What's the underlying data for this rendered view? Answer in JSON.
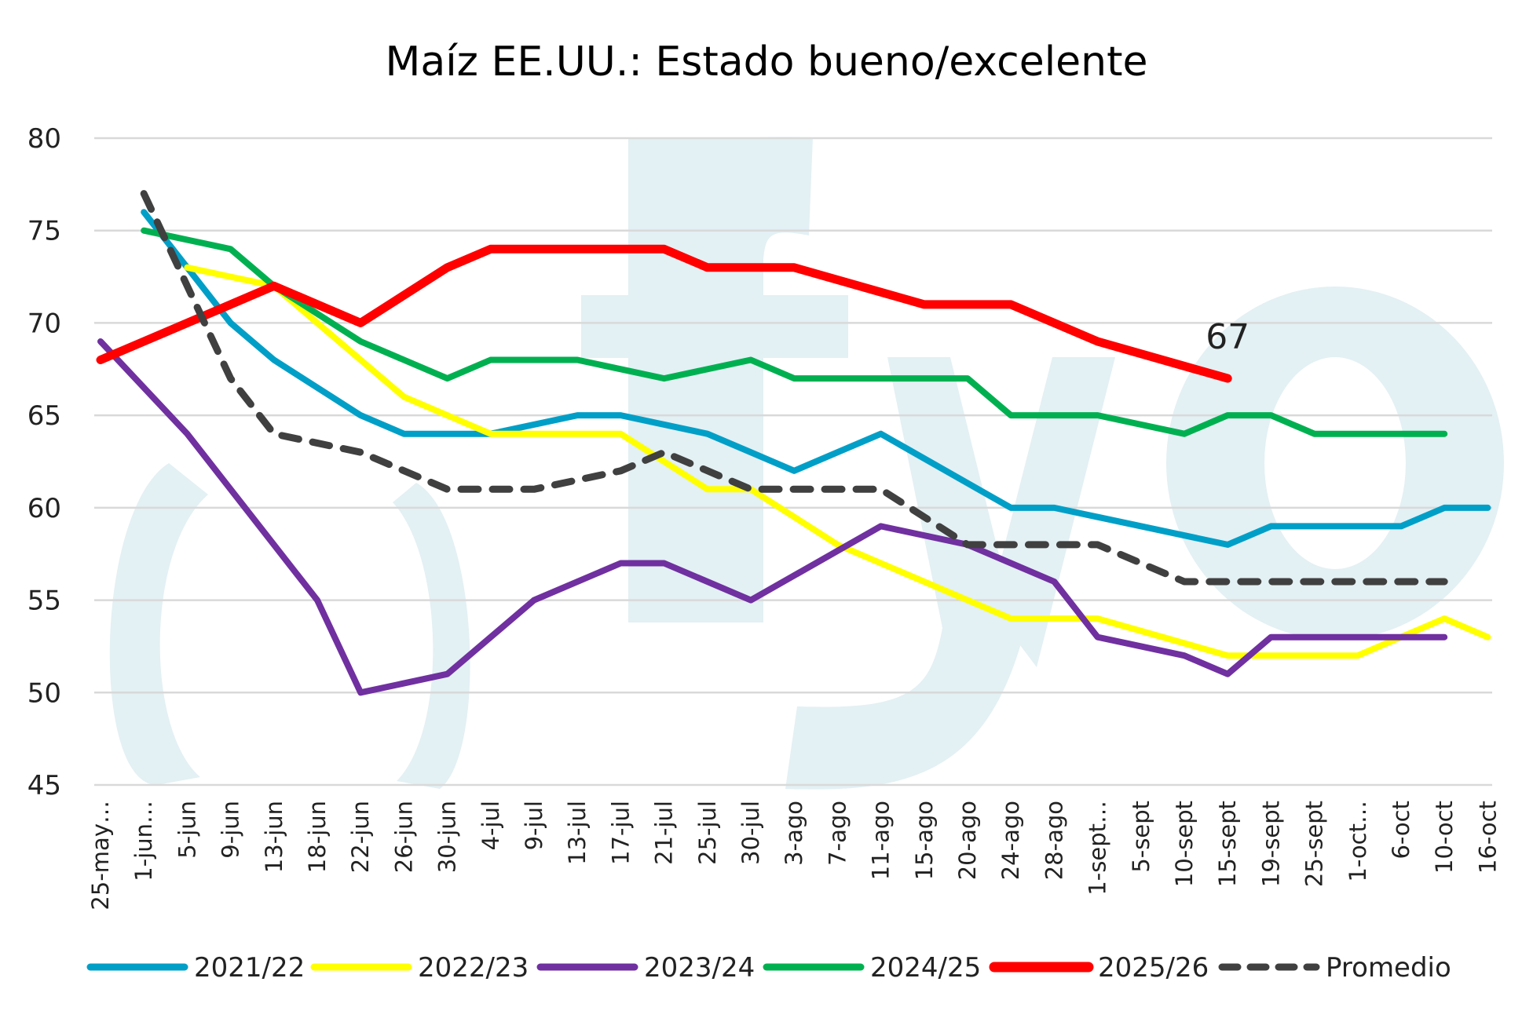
{
  "chart_data": {
    "type": "line",
    "title": "Maíz EE.UU.: Estado bueno/excelente",
    "xlabel": "",
    "ylabel": "",
    "ylim": [
      45,
      80
    ],
    "yticks": [
      45,
      50,
      55,
      60,
      65,
      70,
      75,
      80
    ],
    "grid": true,
    "legend_position": "bottom",
    "watermark": "fyo",
    "categories": [
      "25-may…",
      "1-jun…",
      "5-jun",
      "9-jun",
      "13-jun",
      "18-jun",
      "22-jun",
      "26-jun",
      "30-jun",
      "4-jul",
      "9-jul",
      "13-jul",
      "17-jul",
      "21-jul",
      "25-jul",
      "30-jul",
      "3-ago",
      "7-ago",
      "11-ago",
      "15-ago",
      "20-ago",
      "24-ago",
      "28-ago",
      "1-sept…",
      "5-sept",
      "10-sept",
      "15-sept",
      "19-sept",
      "25-sept",
      "1-oct…",
      "6-oct",
      "10-oct",
      "16-oct"
    ],
    "series": [
      {
        "name": "2021/22",
        "color": "#009fc7",
        "dash": false,
        "values": [
          null,
          76,
          73,
          70,
          68,
          null,
          65,
          64,
          64,
          64,
          null,
          65,
          65,
          null,
          64,
          63,
          62,
          63,
          64,
          null,
          null,
          60,
          60,
          null,
          null,
          null,
          58,
          59,
          59,
          59,
          59,
          60,
          60
        ]
      },
      {
        "name": "2022/23",
        "color": "#ffff00",
        "dash": false,
        "values": [
          null,
          null,
          73,
          72.5,
          72,
          70,
          null,
          66,
          null,
          64,
          64,
          64,
          64,
          null,
          61,
          61,
          null,
          58,
          57,
          null,
          55,
          54,
          54,
          54,
          null,
          null,
          52,
          52,
          52,
          52,
          null,
          54,
          53
        ]
      },
      {
        "name": "2023/24",
        "color": "#7030a0",
        "dash": false,
        "values": [
          69,
          null,
          64,
          61,
          null,
          55,
          50,
          null,
          51,
          null,
          55,
          null,
          57,
          57,
          null,
          55,
          null,
          null,
          59,
          null,
          58,
          null,
          56,
          53,
          null,
          52,
          51,
          53,
          53,
          53,
          53,
          53,
          null
        ]
      },
      {
        "name": "2024/25",
        "color": "#00b050",
        "dash": false,
        "values": [
          null,
          75,
          null,
          74,
          72,
          null,
          69,
          null,
          67,
          68,
          68,
          68,
          null,
          67,
          null,
          68,
          67,
          67,
          67,
          67,
          67,
          65,
          65,
          65,
          null,
          64,
          65,
          65,
          64,
          64,
          64,
          64,
          null
        ]
      },
      {
        "name": "2025/26",
        "color": "#ff0000",
        "dash": false,
        "values": [
          68,
          69,
          null,
          71,
          72,
          null,
          70,
          null,
          73,
          74,
          74,
          74,
          74,
          74,
          73,
          73,
          73,
          null,
          null,
          71,
          71,
          71,
          null,
          69,
          null,
          null,
          67,
          null,
          null,
          null,
          null,
          null,
          null
        ]
      },
      {
        "name": "Promedio",
        "color": "#404040",
        "dash": true,
        "values": [
          null,
          77,
          null,
          67,
          64,
          null,
          63,
          null,
          61,
          61,
          61,
          null,
          62,
          63,
          null,
          61,
          61,
          61,
          61,
          null,
          58,
          58,
          58,
          58,
          null,
          56,
          56,
          56,
          56,
          56,
          56,
          56,
          null
        ]
      }
    ],
    "annotations": [
      {
        "text": "67",
        "series": "2025/26",
        "category": "15-sept"
      }
    ]
  }
}
